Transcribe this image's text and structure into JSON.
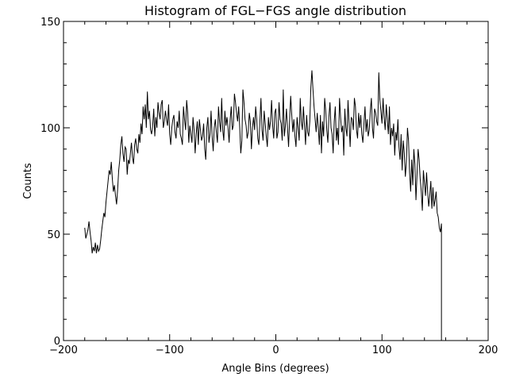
{
  "chart_data": {
    "type": "line",
    "title": "Histogram of FGL−FGS angle distribution",
    "xlabel": "Angle Bins (degrees)",
    "ylabel": "Counts",
    "xlim": [
      -200,
      200
    ],
    "ylim": [
      0,
      150
    ],
    "x_ticks": [
      -200,
      -100,
      0,
      100,
      200
    ],
    "x_tick_labels": [
      "−200",
      "−100",
      "0",
      "100",
      "200"
    ],
    "y_ticks": [
      0,
      50,
      100,
      150
    ],
    "y_tick_labels": [
      "0",
      "50",
      "100",
      "150"
    ],
    "grid": false,
    "x_start": -180,
    "x_step": 1,
    "series": [
      {
        "name": "counts",
        "color": "#000000",
        "values": [
          53,
          48,
          50,
          52,
          56,
          51,
          47,
          41,
          44,
          42,
          46,
          41,
          45,
          42,
          43,
          47,
          52,
          56,
          60,
          58,
          65,
          70,
          75,
          80,
          78,
          84,
          76,
          70,
          73,
          68,
          64,
          71,
          80,
          85,
          92,
          96,
          88,
          84,
          91,
          90,
          78,
          85,
          83,
          88,
          93,
          86,
          83,
          92,
          95,
          90,
          88,
          97,
          93,
          102,
          97,
          110,
          104,
          111,
          100,
          117,
          104,
          108,
          99,
          97,
          101,
          109,
          96,
          105,
          100,
          112,
          107,
          104,
          111,
          113,
          100,
          103,
          108,
          104,
          101,
          111,
          97,
          92,
          100,
          104,
          106,
          98,
          95,
          103,
          100,
          108,
          97,
          95,
          92,
          110,
          104,
          99,
          113,
          107,
          93,
          101,
          97,
          93,
          105,
          99,
          88,
          97,
          103,
          92,
          104,
          99,
          94,
          96,
          102,
          90,
          85,
          100,
          105,
          93,
          97,
          108,
          96,
          89,
          100,
          104,
          98,
          93,
          110,
          103,
          98,
          114,
          99,
          94,
          108,
          101,
          105,
          100,
          93,
          104,
          110,
          99,
          101,
          116,
          112,
          107,
          103,
          110,
          100,
          88,
          94,
          118,
          112,
          104,
          101,
          95,
          98,
          107,
          103,
          90,
          100,
          105,
          99,
          110,
          104,
          95,
          92,
          103,
          114,
          99,
          94,
          108,
          102,
          96,
          91,
          105,
          99,
          103,
          113,
          101,
          95,
          107,
          109,
          95,
          98,
          112,
          104,
          102,
          94,
          118,
          96,
          101,
          109,
          100,
          91,
          104,
          115,
          106,
          98,
          104,
          96,
          91,
          105,
          100,
          94,
          114,
          103,
          99,
          110,
          101,
          92,
          106,
          98,
          96,
          103,
          119,
          127,
          118,
          110,
          104,
          98,
          107,
          100,
          92,
          106,
          88,
          103,
          96,
          114,
          108,
          99,
          93,
          105,
          112,
          100,
          97,
          88,
          103,
          110,
          94,
          100,
          92,
          114,
          105,
          98,
          101,
          87,
          109,
          100,
          96,
          113,
          102,
          91,
          105,
          104,
          99,
          114,
          110,
          99,
          95,
          107,
          100,
          106,
          97,
          93,
          102,
          110,
          98,
          104,
          96,
          99,
          108,
          114,
          100,
          95,
          109,
          107,
          103,
          101,
          126,
          113,
          108,
          102,
          114,
          105,
          99,
          111,
          104,
          97,
          110,
          92,
          100,
          96,
          102,
          87,
          98,
          94,
          104,
          91,
          85,
          97,
          80,
          94,
          88,
          77,
          84,
          100,
          94,
          79,
          70,
          85,
          73,
          90,
          83,
          66,
          78,
          90,
          85,
          76,
          70,
          61,
          80,
          74,
          68,
          79,
          70,
          63,
          68,
          75,
          62,
          72,
          63,
          66,
          70,
          60,
          58,
          53,
          51,
          55
        ]
      }
    ]
  }
}
